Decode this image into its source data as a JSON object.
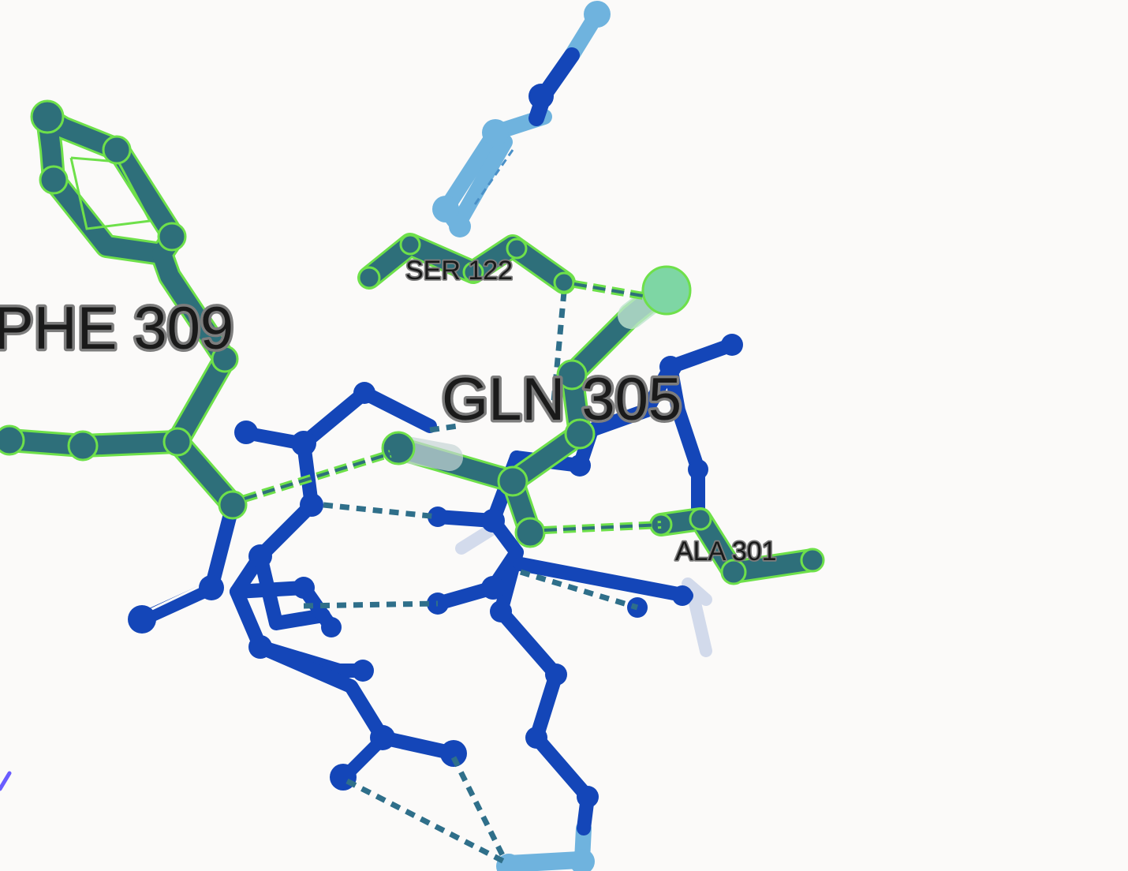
{
  "viewer": {
    "background": "#fbfaf9",
    "colors": {
      "highlight_outline": "#6ee04a",
      "highlight_residue": "#2e6f7a",
      "focus_atom": "#7ed6a4",
      "backbone_blue": "#1446b8",
      "ligand_light_blue": "#6fb3de",
      "hbond_dash": "#2f6f8a",
      "hbond_dash_highlight": "#6ee04a",
      "faded": "#c9d3e8",
      "edge_violet": "#6a5cff"
    }
  },
  "labels": {
    "phe_309": "PHE 309",
    "gln_305": "GLN 305",
    "ser_122": "SER 122",
    "ala_301": "ALA 301"
  }
}
